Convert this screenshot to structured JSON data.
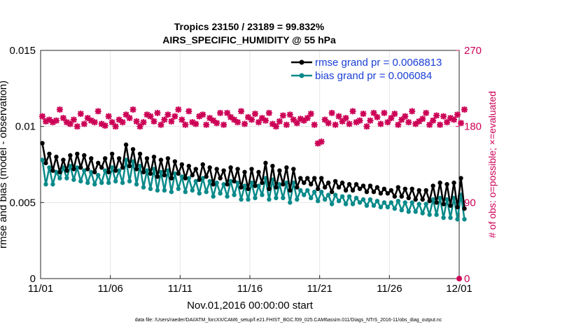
{
  "chart_data": {
    "type": "line",
    "title": "Tropics 23150 / 23189 = 99.832%",
    "subtitle": "AIRS_SPECIFIC_HUMIDITY @ 55 hPa",
    "xlabel": "Nov.01,2016 00:00:00 start",
    "ylabel": "rmse and bias (model - observation)",
    "ylabel_right": "# of obs: o=possible; ×=evaluated",
    "footer": "data file: /Users/raeder/DAI/ATM_forcXX/CAM6_setup/f.e21.FHIST_BGC.f09_025.CAM6assim.011/Diags_NTrS_2016-11/obs_diag_output.nc",
    "x_range": [
      0,
      30
    ],
    "ylim": [
      0,
      0.015
    ],
    "ylim_right": [
      0,
      270
    ],
    "x_tick_labels": [
      "11/01",
      "11/06",
      "11/11",
      "11/16",
      "11/21",
      "11/26",
      "12/01"
    ],
    "x_tick_values": [
      0,
      5,
      10,
      15,
      20,
      25,
      30
    ],
    "y_tick_labels": [
      "0",
      "0.005",
      "0.01",
      "0.015"
    ],
    "y_tick_values": [
      0,
      0.005,
      0.01,
      0.015
    ],
    "y_right_tick_labels": [
      "0",
      "90",
      "180",
      "270"
    ],
    "y_right_tick_values": [
      0,
      90,
      180,
      270
    ],
    "step_days": 0.25,
    "series": [
      {
        "name": "rmse grand pr = 0.0068813",
        "color": "#000000",
        "values": [
          0.0089,
          0.0076,
          0.0082,
          0.0071,
          0.008,
          0.007,
          0.0078,
          0.0071,
          0.0081,
          0.0072,
          0.0082,
          0.0073,
          0.0081,
          0.0072,
          0.0079,
          0.007,
          0.0076,
          0.0073,
          0.0079,
          0.007,
          0.0082,
          0.0071,
          0.0079,
          0.0073,
          0.0088,
          0.0074,
          0.0085,
          0.0072,
          0.0082,
          0.007,
          0.0079,
          0.0069,
          0.008,
          0.0067,
          0.0078,
          0.0068,
          0.0079,
          0.0066,
          0.0077,
          0.0069,
          0.0075,
          0.0066,
          0.0074,
          0.0068,
          0.0072,
          0.0065,
          0.0075,
          0.0067,
          0.0073,
          0.0062,
          0.0072,
          0.0066,
          0.0071,
          0.0062,
          0.0073,
          0.0064,
          0.0072,
          0.006,
          0.007,
          0.0059,
          0.0072,
          0.0061,
          0.007,
          0.0063,
          0.0076,
          0.0059,
          0.0074,
          0.006,
          0.0071,
          0.0062,
          0.0073,
          0.0058,
          0.0072,
          0.006,
          0.0066,
          0.0063,
          0.0066,
          0.0062,
          0.0066,
          0.0059,
          0.0066,
          0.006,
          0.0063,
          0.0057,
          0.0064,
          0.006,
          0.0063,
          0.0058,
          0.0062,
          0.0058,
          0.0062,
          0.0059,
          0.0061,
          0.0057,
          0.0061,
          0.0057,
          0.006,
          0.0056,
          0.0059,
          0.0056,
          0.0058,
          0.0054,
          0.006,
          0.0054,
          0.0059,
          0.0053,
          0.0059,
          0.0052,
          0.0058,
          0.0052,
          0.0058,
          0.0051,
          0.0061,
          0.005,
          0.0063,
          0.0049,
          0.0062,
          0.0048,
          0.0063,
          0.0047,
          0.0066,
          0.0046
        ]
      },
      {
        "name": "bias grand pr = 0.006084",
        "color": "#0a8a8a",
        "values": [
          0.0078,
          0.0062,
          0.0073,
          0.0062,
          0.007,
          0.0066,
          0.0073,
          0.0066,
          0.0074,
          0.0065,
          0.0073,
          0.0064,
          0.0071,
          0.0063,
          0.007,
          0.0062,
          0.0068,
          0.0063,
          0.0071,
          0.0063,
          0.0073,
          0.0064,
          0.0071,
          0.0063,
          0.0078,
          0.0064,
          0.0077,
          0.0062,
          0.0074,
          0.006,
          0.0071,
          0.0059,
          0.0072,
          0.0058,
          0.007,
          0.0058,
          0.0071,
          0.0057,
          0.0069,
          0.0059,
          0.0067,
          0.0057,
          0.0066,
          0.0058,
          0.0064,
          0.0056,
          0.0066,
          0.0057,
          0.0064,
          0.0054,
          0.0063,
          0.0056,
          0.0062,
          0.0054,
          0.0064,
          0.0055,
          0.0063,
          0.0052,
          0.0061,
          0.0052,
          0.0063,
          0.0053,
          0.0061,
          0.0055,
          0.0066,
          0.0052,
          0.0065,
          0.0053,
          0.0062,
          0.0053,
          0.0063,
          0.005,
          0.0063,
          0.0052,
          0.0058,
          0.0055,
          0.0058,
          0.0053,
          0.0057,
          0.0051,
          0.0057,
          0.0052,
          0.0055,
          0.0049,
          0.0055,
          0.0051,
          0.0054,
          0.0049,
          0.0054,
          0.0049,
          0.0053,
          0.005,
          0.0052,
          0.0048,
          0.0052,
          0.0048,
          0.0051,
          0.0047,
          0.005,
          0.0047,
          0.005,
          0.0046,
          0.0051,
          0.0045,
          0.005,
          0.0044,
          0.005,
          0.0044,
          0.0049,
          0.0043,
          0.0049,
          0.0042,
          0.0052,
          0.0042,
          0.0053,
          0.004,
          0.0052,
          0.004,
          0.0053,
          0.0039,
          0.0055,
          0.0039
        ]
      }
    ],
    "obs_count_series": {
      "name": "# of obs",
      "color": "#cc0055",
      "values": [
        192,
        186,
        188,
        185,
        187,
        200,
        190,
        185,
        183,
        188,
        180,
        195,
        183,
        190,
        187,
        185,
        198,
        183,
        181,
        192,
        185,
        180,
        188,
        185,
        194,
        190,
        200,
        186,
        180,
        185,
        194,
        192,
        186,
        196,
        182,
        188,
        194,
        186,
        192,
        200,
        188,
        182,
        198,
        185,
        183,
        192,
        194,
        182,
        190,
        187,
        184,
        196,
        182,
        196,
        191,
        188,
        185,
        198,
        183,
        191,
        188,
        195,
        185,
        190,
        187,
        196,
        183,
        180,
        186,
        193,
        182,
        194,
        188,
        184,
        189,
        187,
        190,
        195,
        182,
        160,
        162,
        188,
        184,
        196,
        182,
        192,
        186,
        190,
        183,
        198,
        185,
        187,
        195,
        180,
        187,
        196,
        191,
        183,
        196,
        185,
        190,
        195,
        182,
        188,
        192,
        185,
        198,
        183,
        186,
        189,
        196,
        182,
        187,
        193,
        182,
        192,
        185,
        190,
        188,
        194,
        184,
        200
      ]
    }
  },
  "legend": {
    "rmse_label": "rmse grand pr = 0.0068813",
    "bias_label": "bias grand pr = 0.006084"
  },
  "colors": {
    "rmse": "#000000",
    "bias": "#0a8a8a",
    "obs": "#cc0055",
    "legend_text": "#1a3fd6"
  }
}
